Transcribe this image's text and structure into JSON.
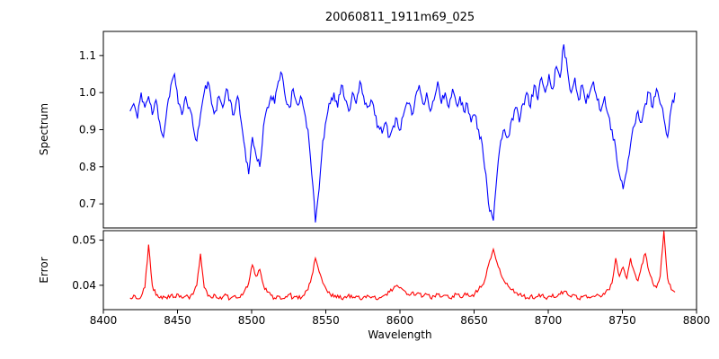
{
  "chart_data": {
    "type": "line",
    "title": "20060811_1911m69_025",
    "xlabel": "Wavelength",
    "x_axis": {
      "min": 8400,
      "max": 8800,
      "ticks": [
        8400,
        8450,
        8500,
        8550,
        8600,
        8650,
        8700,
        8750,
        8800
      ],
      "tick_labels": [
        "8400",
        "8450",
        "8500",
        "8550",
        "8600",
        "8650",
        "8700",
        "8750",
        "8800"
      ]
    },
    "grid": false,
    "legend": "none",
    "subplots": [
      {
        "name": "spectrum",
        "ylabel": "Spectrum",
        "ylim": [
          0.635,
          1.165
        ],
        "yticks": [
          0.7,
          0.8,
          0.9,
          1.0,
          1.1
        ],
        "ytick_labels": [
          "0.7",
          "0.8",
          "0.9",
          "1.0",
          "1.1"
        ],
        "series": [
          {
            "name": "spectrum",
            "color": "#0000ff",
            "x_start": 8418,
            "x_step": 2.5,
            "values": [
              0.95,
              0.97,
              0.93,
              1.0,
              0.96,
              0.99,
              0.94,
              0.98,
              0.92,
              0.88,
              0.96,
              1.02,
              1.05,
              0.97,
              0.94,
              0.99,
              0.96,
              0.91,
              0.87,
              0.94,
              1.0,
              1.03,
              0.97,
              0.95,
              0.99,
              0.96,
              1.01,
              0.98,
              0.94,
              0.99,
              0.92,
              0.85,
              0.78,
              0.88,
              0.83,
              0.8,
              0.91,
              0.96,
              0.99,
              0.97,
              1.03,
              1.05,
              0.98,
              0.96,
              1.01,
              0.97,
              0.99,
              0.95,
              0.9,
              0.78,
              0.65,
              0.74,
              0.87,
              0.93,
              0.97,
              1.0,
              0.96,
              1.02,
              0.98,
              0.95,
              1.0,
              0.97,
              1.03,
              0.99,
              0.96,
              0.98,
              0.94,
              0.91,
              0.89,
              0.92,
              0.88,
              0.91,
              0.93,
              0.9,
              0.95,
              0.97,
              0.94,
              0.99,
              1.02,
              0.97,
              1.0,
              0.95,
              0.98,
              1.03,
              0.97,
              1.0,
              0.96,
              1.01,
              0.97,
              0.99,
              0.95,
              0.97,
              0.92,
              0.94,
              0.9,
              0.86,
              0.78,
              0.68,
              0.655,
              0.78,
              0.87,
              0.9,
              0.88,
              0.93,
              0.96,
              0.92,
              0.97,
              1.0,
              0.96,
              1.02,
              0.98,
              1.04,
              1.0,
              1.05,
              1.01,
              1.07,
              1.04,
              1.13,
              1.06,
              1.0,
              1.04,
              0.98,
              1.02,
              0.97,
              1.0,
              1.03,
              0.98,
              0.95,
              0.99,
              0.94,
              0.9,
              0.85,
              0.78,
              0.74,
              0.79,
              0.86,
              0.91,
              0.95,
              0.92,
              0.97,
              1.0,
              0.96,
              1.01,
              0.97,
              0.93,
              0.88,
              0.96,
              1.0
            ],
            "jitter": {
              "seed": 11,
              "amplitude": 0.014,
              "upsample": 3
            }
          }
        ]
      },
      {
        "name": "error",
        "ylabel": "Error",
        "ylim": [
          0.0346,
          0.0521
        ],
        "yticks": [
          0.04,
          0.05
        ],
        "ytick_labels": [
          "0.04",
          "0.05"
        ],
        "series": [
          {
            "name": "error",
            "color": "#ff0000",
            "x_start": 8418,
            "x_step": 2.5,
            "values": [
              0.0372,
              0.0378,
              0.037,
              0.0375,
              0.0395,
              0.049,
              0.04,
              0.0378,
              0.0372,
              0.0376,
              0.037,
              0.0378,
              0.0374,
              0.038,
              0.0372,
              0.0376,
              0.037,
              0.038,
              0.04,
              0.047,
              0.0395,
              0.0376,
              0.0372,
              0.0378,
              0.037,
              0.0374,
              0.0378,
              0.037,
              0.0376,
              0.0372,
              0.038,
              0.039,
              0.0405,
              0.0445,
              0.042,
              0.0435,
              0.04,
              0.0385,
              0.0378,
              0.0372,
              0.0376,
              0.037,
              0.0375,
              0.038,
              0.0372,
              0.0376,
              0.037,
              0.0378,
              0.039,
              0.042,
              0.046,
              0.043,
              0.0405,
              0.039,
              0.038,
              0.0374,
              0.0378,
              0.037,
              0.0375,
              0.038,
              0.0372,
              0.0376,
              0.037,
              0.0374,
              0.0378,
              0.0372,
              0.0376,
              0.037,
              0.0375,
              0.038,
              0.0385,
              0.0392,
              0.04,
              0.0395,
              0.0388,
              0.038,
              0.0384,
              0.0378,
              0.0382,
              0.0375,
              0.038,
              0.0372,
              0.0376,
              0.038,
              0.0374,
              0.0378,
              0.0372,
              0.0376,
              0.038,
              0.0374,
              0.0378,
              0.0382,
              0.0376,
              0.0382,
              0.039,
              0.04,
              0.042,
              0.0455,
              0.048,
              0.045,
              0.0425,
              0.0408,
              0.0398,
              0.039,
              0.0384,
              0.038,
              0.0376,
              0.0372,
              0.0376,
              0.037,
              0.0375,
              0.0378,
              0.0372,
              0.0376,
              0.038,
              0.0374,
              0.038,
              0.0386,
              0.038,
              0.0374,
              0.0378,
              0.037,
              0.0374,
              0.0378,
              0.0372,
              0.0376,
              0.038,
              0.0374,
              0.038,
              0.039,
              0.0405,
              0.046,
              0.042,
              0.044,
              0.0415,
              0.046,
              0.043,
              0.041,
              0.0445,
              0.047,
              0.043,
              0.0405,
              0.0395,
              0.042,
              0.052,
              0.0415,
              0.039,
              0.0385
            ],
            "jitter": {
              "seed": 23,
              "amplitude": 0.0005,
              "upsample": 3
            }
          }
        ]
      }
    ]
  }
}
